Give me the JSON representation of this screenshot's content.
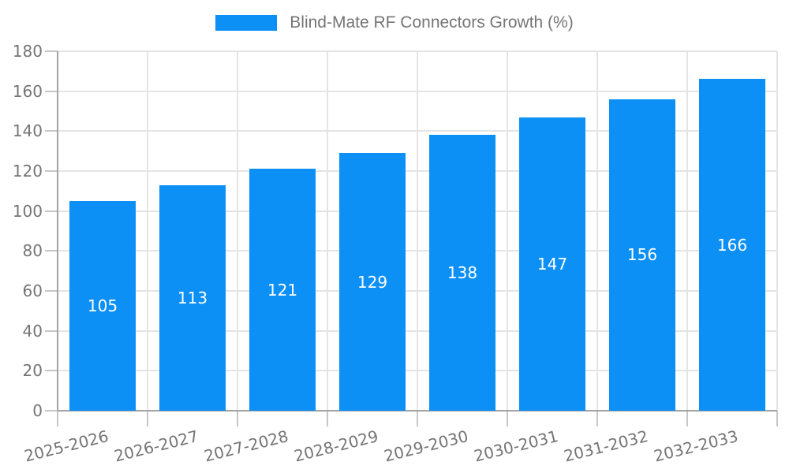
{
  "legend": {
    "label": "Blind-Mate RF Connectors Growth (%)"
  },
  "chart_data": {
    "type": "bar",
    "title": "Blind-Mate RF Connectors Growth (%)",
    "categories": [
      "2025-2026",
      "2026-2027",
      "2027-2028",
      "2028-2029",
      "2029-2030",
      "2030-2031",
      "2031-2032",
      "2032-2033"
    ],
    "values": [
      105,
      113,
      121,
      129,
      138,
      147,
      156,
      166
    ],
    "xlabel": "",
    "ylabel": "",
    "ylim": [
      0,
      180
    ],
    "yticks": [
      0,
      20,
      40,
      60,
      80,
      100,
      120,
      140,
      160,
      180
    ],
    "grid": true,
    "legend_position": "top",
    "value_labels": "inside-center",
    "colors": {
      "bar": "#0c90f6",
      "value_label": "#ffffff",
      "axis_text": "#757575",
      "gridline": "#e4e4e4",
      "axis_line": "#a3a3a3",
      "tick": "#c6c6c6",
      "background": "#ffffff"
    }
  }
}
